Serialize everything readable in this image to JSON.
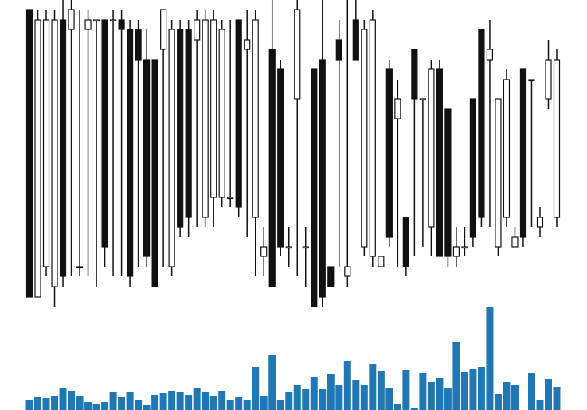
{
  "chart_data": {
    "type": "candlestick",
    "open": [
      378,
      17,
      55,
      30,
      365,
      353,
      55,
      353,
      365,
      365,
      365,
      365,
      353,
      353,
      315,
      315,
      328,
      55,
      353,
      353,
      340,
      117,
      142,
      142,
      142,
      365,
      328,
      117,
      68,
      328,
      303,
      80,
      266,
      80,
      303,
      315,
      55,
      340,
      43,
      365,
      80,
      68,
      55,
      303,
      241,
      117,
      328,
      266,
      105,
      303,
      253,
      68,
      80,
      266,
      353,
      315,
      80,
      117,
      80,
      303,
      290,
      105,
      266,
      117
    ],
    "high": [
      378,
      378,
      378,
      378,
      390,
      390,
      378,
      378,
      365,
      365,
      378,
      378,
      365,
      365,
      353,
      315,
      378,
      365,
      365,
      365,
      378,
      378,
      378,
      365,
      365,
      365,
      378,
      378,
      105,
      390,
      315,
      105,
      390,
      105,
      303,
      390,
      55,
      365,
      390,
      390,
      365,
      378,
      68,
      315,
      290,
      117,
      328,
      266,
      315,
      315,
      253,
      105,
      105,
      266,
      353,
      365,
      266,
      303,
      105,
      303,
      290,
      130,
      340,
      328
    ],
    "low": [
      17,
      17,
      43,
      5,
      30,
      43,
      43,
      43,
      30,
      55,
      43,
      43,
      30,
      55,
      55,
      30,
      55,
      43,
      92,
      92,
      105,
      105,
      105,
      130,
      130,
      117,
      92,
      43,
      43,
      30,
      68,
      55,
      43,
      30,
      5,
      5,
      30,
      55,
      30,
      315,
      68,
      55,
      55,
      80,
      55,
      43,
      68,
      80,
      68,
      68,
      55,
      55,
      68,
      80,
      105,
      105,
      68,
      105,
      80,
      80,
      105,
      92,
      253,
      105
    ],
    "close": [
      17,
      365,
      365,
      365,
      43,
      378,
      55,
      365,
      365,
      80,
      365,
      353,
      43,
      315,
      68,
      30,
      378,
      353,
      105,
      117,
      365,
      365,
      365,
      353,
      142,
      130,
      340,
      365,
      80,
      30,
      80,
      80,
      378,
      80,
      5,
      17,
      30,
      315,
      55,
      315,
      353,
      365,
      68,
      92,
      266,
      55,
      266,
      266,
      303,
      68,
      68,
      80,
      80,
      92,
      117,
      328,
      266,
      290,
      92,
      92,
      290,
      117,
      315,
      315
    ],
    "volume": [
      12,
      16,
      15,
      18,
      28,
      24,
      17,
      10,
      7,
      10,
      23,
      16,
      22,
      13,
      6,
      19,
      21,
      24,
      22,
      19,
      28,
      23,
      17,
      24,
      13,
      16,
      13,
      54,
      18,
      69,
      12,
      22,
      31,
      26,
      42,
      27,
      45,
      32,
      62,
      38,
      31,
      58,
      49,
      28,
      7,
      50,
      3,
      47,
      35,
      40,
      28,
      86,
      48,
      51,
      54,
      129,
      20,
      35,
      31,
      0,
      47,
      13,
      39,
      29
    ],
    "ylim": [
      0,
      390
    ],
    "y2lim": [
      0,
      130
    ],
    "up_color": "#ffffff",
    "down_color": "#111111",
    "edge_color": "#111111",
    "volume_color": "#1f77b4"
  }
}
